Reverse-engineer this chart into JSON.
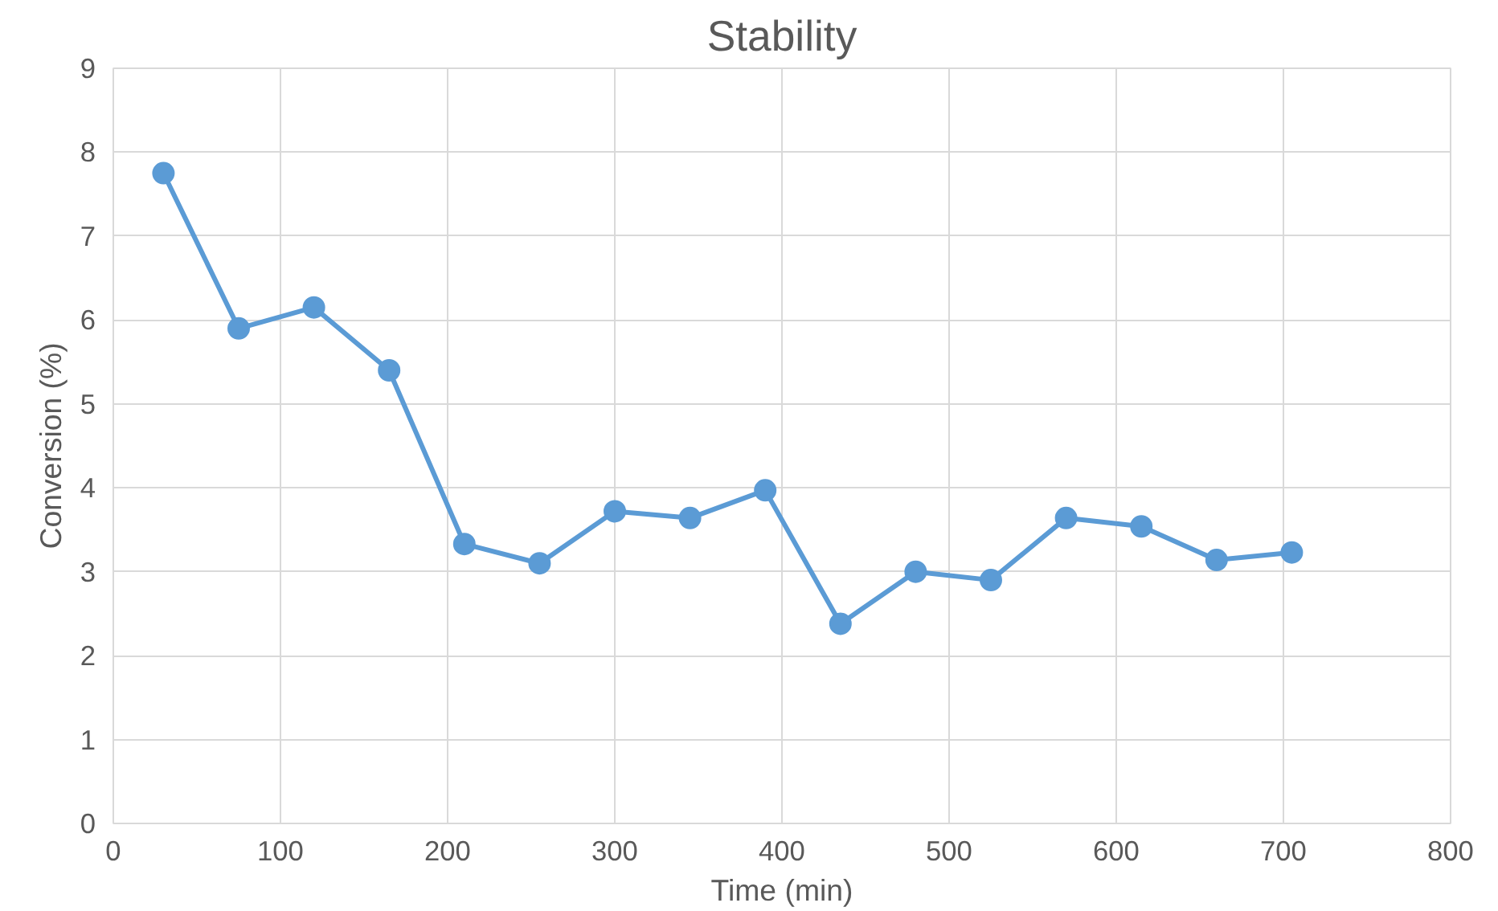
{
  "chart_data": {
    "type": "line",
    "title": "Stability",
    "xlabel": "Time (min)",
    "ylabel": "Conversion (%)",
    "x": [
      30,
      75,
      120,
      165,
      210,
      255,
      300,
      345,
      390,
      435,
      480,
      525,
      570,
      615,
      660,
      705
    ],
    "series": [
      {
        "color": "#5b9bd5",
        "values": [
          7.75,
          5.9,
          6.15,
          5.4,
          3.33,
          3.1,
          3.72,
          3.64,
          3.97,
          2.38,
          3.0,
          2.9,
          3.64,
          3.54,
          3.14,
          3.23
        ]
      }
    ],
    "xlim": [
      0,
      800
    ],
    "xticks": [
      0,
      100,
      200,
      300,
      400,
      500,
      600,
      700,
      800
    ],
    "ylim": [
      0,
      9
    ],
    "yticks": [
      0,
      1,
      2,
      3,
      4,
      5,
      6,
      7,
      8,
      9
    ],
    "grid": true,
    "marker": "circle",
    "line_style": "solid"
  }
}
